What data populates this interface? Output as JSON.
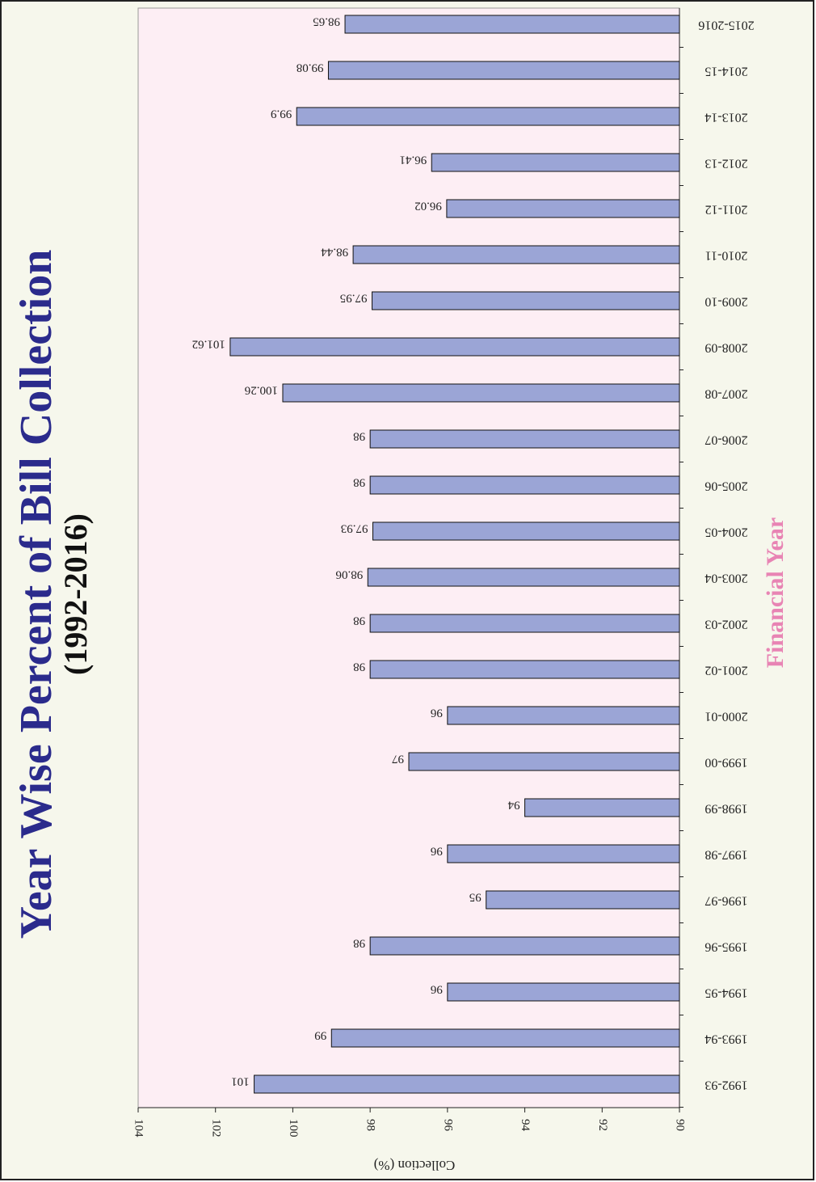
{
  "chart_data": {
    "type": "bar",
    "orientation": "horizontal",
    "title": "Year Wise Percent of Bill Collection",
    "subtitle": "(1992-2016)",
    "xlabel": "Financial Year",
    "ylabel": "Collection (%)",
    "categories": [
      "1992-93",
      "1993-94",
      "1994-95",
      "1995-96",
      "1996-97",
      "1997-98",
      "1998-99",
      "1999-00",
      "2000-01",
      "2001-02",
      "2002-03",
      "2003-04",
      "2004-05",
      "2005-06",
      "2006-07",
      "2007-08",
      "2008-09",
      "2009-10",
      "2010-11",
      "2011-12",
      "2012-13",
      "2013-14",
      "2014-15",
      "2015-2016"
    ],
    "values": [
      101,
      99,
      96,
      98,
      95,
      96,
      94,
      97,
      96,
      98,
      98,
      98.06,
      97.93,
      98,
      98,
      100.26,
      101.62,
      97.95,
      98.44,
      96.02,
      96.41,
      99.9,
      99.08,
      98.65
    ],
    "color": "#9ba5d6",
    "ylim": [
      90,
      104
    ],
    "yticks": [
      90,
      92,
      94,
      96,
      98,
      100,
      102,
      104
    ]
  }
}
